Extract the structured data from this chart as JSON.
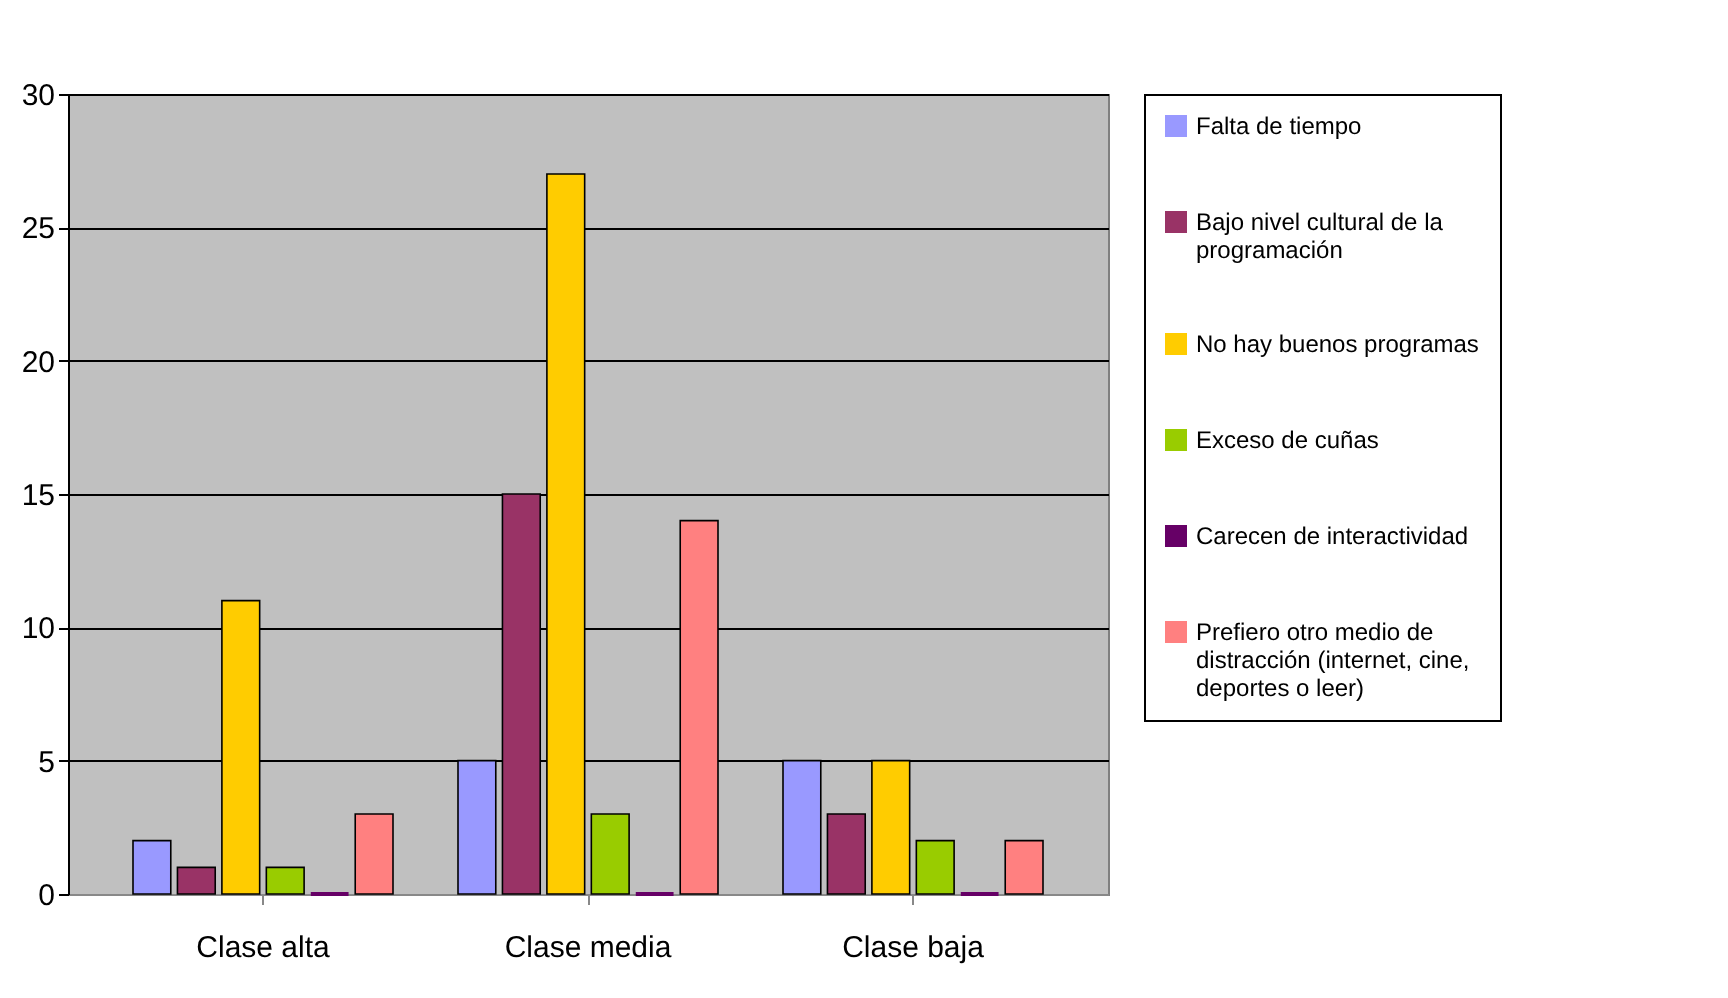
{
  "chart_data": {
    "type": "bar",
    "categories": [
      "Clase alta",
      "Clase media",
      "Clase baja"
    ],
    "series": [
      {
        "name": "Falta de tiempo",
        "color": "#9999ff",
        "values": [
          2,
          5,
          5
        ]
      },
      {
        "name": "Bajo nivel cultural de la programación",
        "color": "#993366",
        "values": [
          1,
          15,
          3
        ]
      },
      {
        "name": "No hay buenos programas",
        "color": "#ffcc00",
        "values": [
          11,
          27,
          5
        ]
      },
      {
        "name": "Exceso de cuñas",
        "color": "#99cc00",
        "values": [
          1,
          3,
          2
        ]
      },
      {
        "name": "Carecen de interactividad",
        "color": "#660066",
        "values": [
          0,
          0,
          0
        ]
      },
      {
        "name": "Prefiero otro medio de distracción (internet, cine, deportes o leer)",
        "color": "#ff8080",
        "values": [
          3,
          14,
          2
        ]
      }
    ],
    "ylim": [
      0,
      30
    ],
    "yticks": [
      0,
      5,
      10,
      15,
      20,
      25,
      30
    ],
    "grid": "y",
    "legend": "right"
  }
}
